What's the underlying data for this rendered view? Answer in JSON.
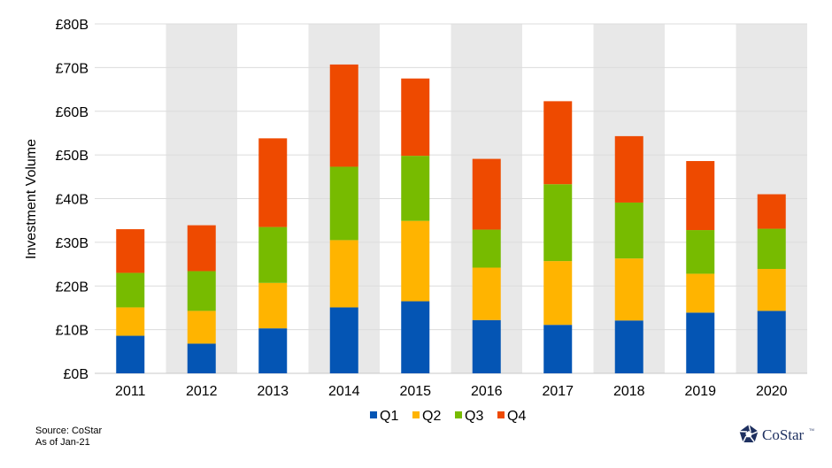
{
  "chart_data": {
    "type": "bar",
    "stacked": true,
    "title": "",
    "xlabel": "",
    "ylabel": "Investment Volume",
    "ylim": [
      0,
      80
    ],
    "yticks": [
      "£0B",
      "£10B",
      "£20B",
      "£30B",
      "£40B",
      "£50B",
      "£60B",
      "£70B",
      "£80B"
    ],
    "grid": true,
    "alternating_bands": true,
    "legend_position": "bottom",
    "categories": [
      "2011",
      "2012",
      "2013",
      "2014",
      "2015",
      "2016",
      "2017",
      "2018",
      "2019",
      "2020"
    ],
    "series": [
      {
        "name": "Q1",
        "color": "#0455b4",
        "values": [
          8.6,
          6.8,
          10.3,
          15.1,
          16.5,
          12.2,
          11.1,
          12.1,
          13.9,
          14.3
        ]
      },
      {
        "name": "Q2",
        "color": "#ffb400",
        "values": [
          6.5,
          7.5,
          10.4,
          15.4,
          18.4,
          12.0,
          14.6,
          14.2,
          8.9,
          9.6
        ]
      },
      {
        "name": "Q3",
        "color": "#77bb00",
        "values": [
          7.9,
          9.1,
          12.8,
          16.8,
          14.9,
          8.7,
          17.6,
          12.8,
          10.0,
          9.2
        ]
      },
      {
        "name": "Q4",
        "color": "#ee4a00",
        "values": [
          10.0,
          10.5,
          20.3,
          23.4,
          17.7,
          16.2,
          19.0,
          15.2,
          15.8,
          7.9
        ]
      }
    ]
  },
  "footer": {
    "source": "Source: CoStar",
    "as_of": "As of Jan-21",
    "logo_text": "CoStar",
    "logo_tm": "TM"
  }
}
